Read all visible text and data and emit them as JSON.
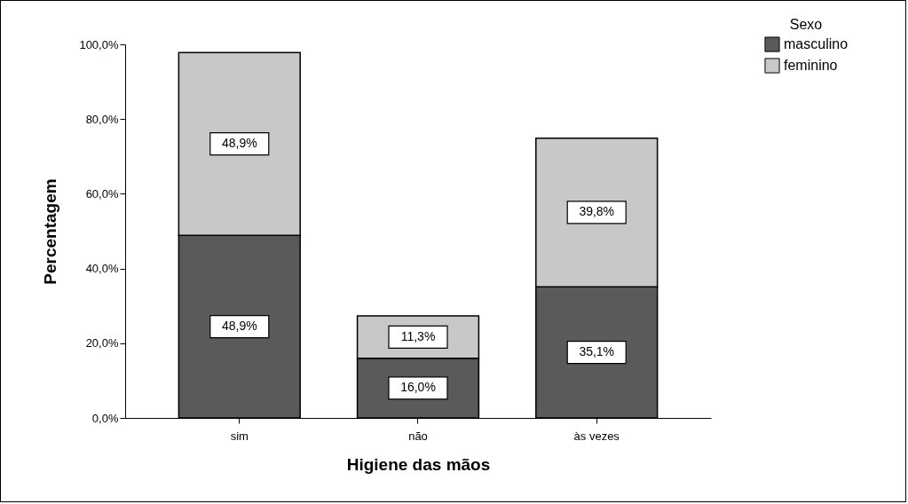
{
  "chart_data": {
    "type": "bar",
    "stacked": true,
    "xlabel": "Higiene das mãos",
    "ylabel": "Percentagem",
    "legend_title": "Sexo",
    "legend": "top right",
    "categories": [
      "sim",
      "não",
      "às vezes"
    ],
    "series": [
      {
        "name": "masculino",
        "color": "#5a5a5a",
        "values": [
          48.9,
          16.0,
          35.1
        ],
        "value_labels": [
          "48,9%",
          "16,0%",
          "35,1%"
        ]
      },
      {
        "name": "feminino",
        "color": "#c8c8c8",
        "values": [
          48.9,
          11.3,
          39.8
        ],
        "value_labels": [
          "48,9%",
          "11,3%",
          "39,8%"
        ]
      }
    ],
    "ylim": [
      0,
      100
    ],
    "yticks": [
      {
        "value": 0,
        "label": "0,0%"
      },
      {
        "value": 20,
        "label": "20,0%"
      },
      {
        "value": 40,
        "label": "40,0%"
      },
      {
        "value": 60,
        "label": "60,0%"
      },
      {
        "value": 80,
        "label": "80,0%"
      },
      {
        "value": 100,
        "label": "100,0%"
      }
    ]
  }
}
